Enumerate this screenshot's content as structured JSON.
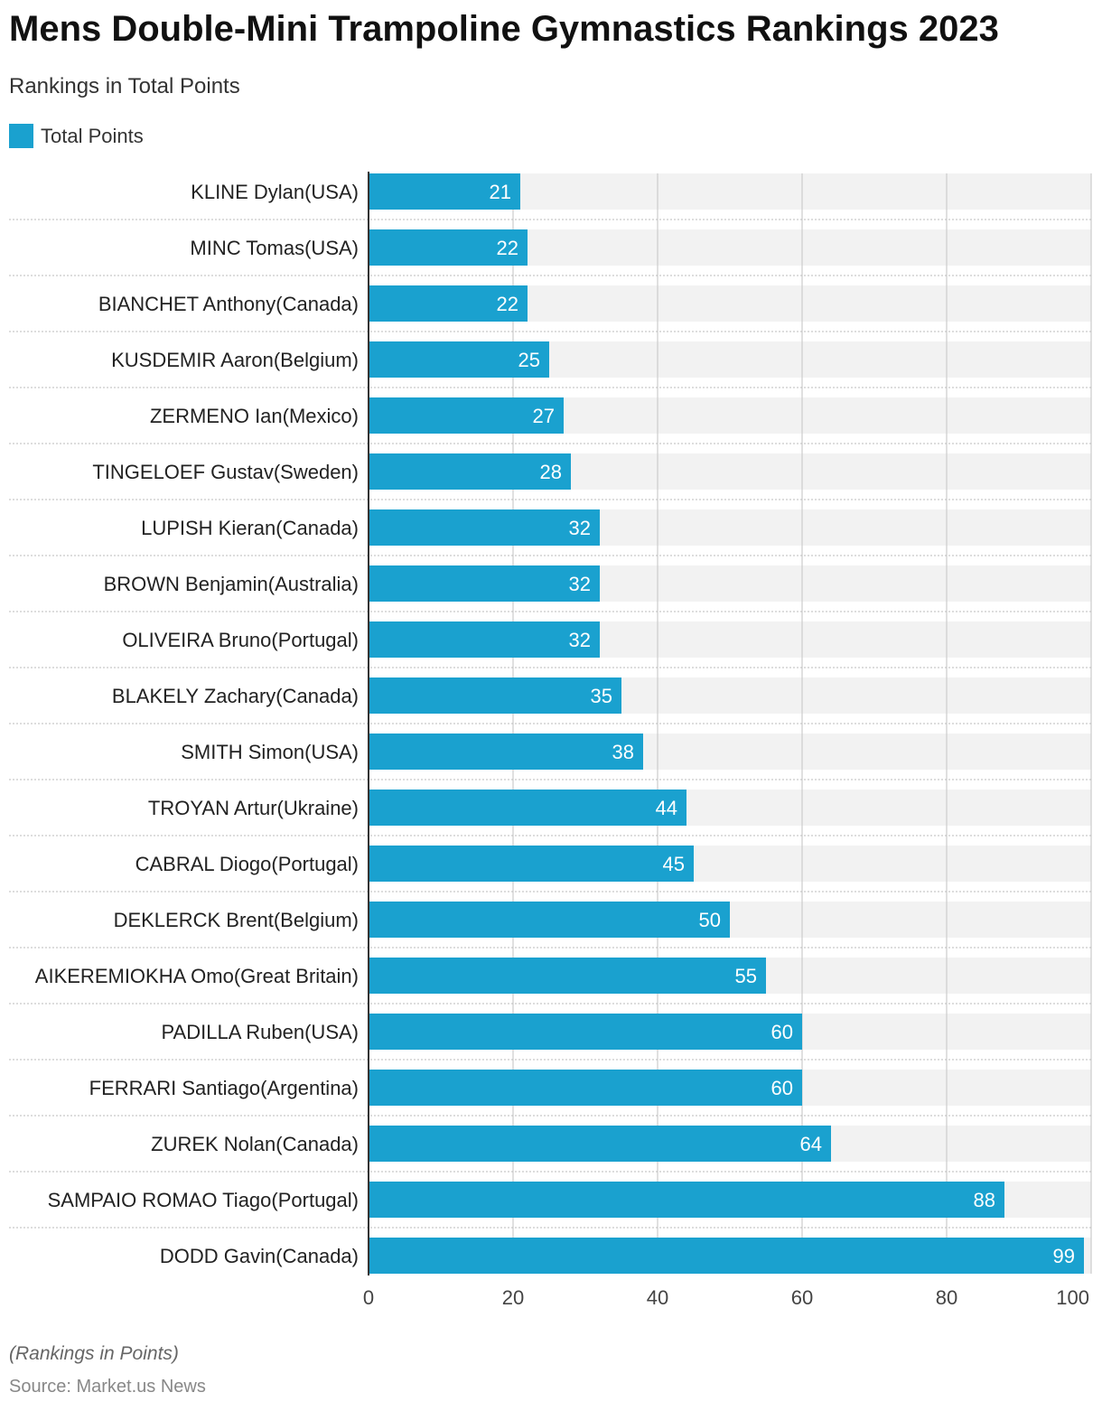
{
  "chart_data": {
    "type": "bar",
    "orientation": "horizontal",
    "title": "Mens Double-Mini Trampoline Gymnastics Rankings 2023",
    "subtitle": "Rankings in Total Points",
    "categories": [
      "KLINE Dylan(USA)",
      "MINC Tomas(USA)",
      "BIANCHET Anthony(Canada)",
      "KUSDEMIR Aaron(Belgium)",
      "ZERMENO Ian(Mexico)",
      "TINGELOEF Gustav(Sweden)",
      "LUPISH Kieran(Canada)",
      "BROWN Benjamin(Australia)",
      "OLIVEIRA Bruno(Portugal)",
      "BLAKELY Zachary(Canada)",
      "SMITH Simon(USA)",
      "TROYAN Artur(Ukraine)",
      "CABRAL Diogo(Portugal)",
      "DEKLERCK Brent(Belgium)",
      "AIKEREMIOKHA Omo(Great Britain)",
      "PADILLA Ruben(USA)",
      "FERRARI Santiago(Argentina)",
      "ZUREK Nolan(Canada)",
      "SAMPAIO ROMAO Tiago(Portugal)",
      "DODD Gavin(Canada)"
    ],
    "series": [
      {
        "name": "Total Points",
        "color": "#1aa1cf",
        "values": [
          21,
          22,
          22,
          25,
          27,
          28,
          32,
          32,
          32,
          35,
          38,
          44,
          45,
          50,
          55,
          60,
          60,
          64,
          88,
          99
        ]
      }
    ],
    "xlim": [
      0,
      100
    ],
    "xticks": [
      0,
      20,
      40,
      60,
      80,
      100
    ],
    "grid": true,
    "legend_position": "top-left",
    "data_labels": true
  },
  "colors": {
    "bar": "#1aa1cf",
    "track": "#f2f2f2",
    "grid": "#cccccc",
    "axis": "#333333"
  },
  "footer": {
    "note": "(Rankings in Points)",
    "source": "Source: Market.us News"
  }
}
